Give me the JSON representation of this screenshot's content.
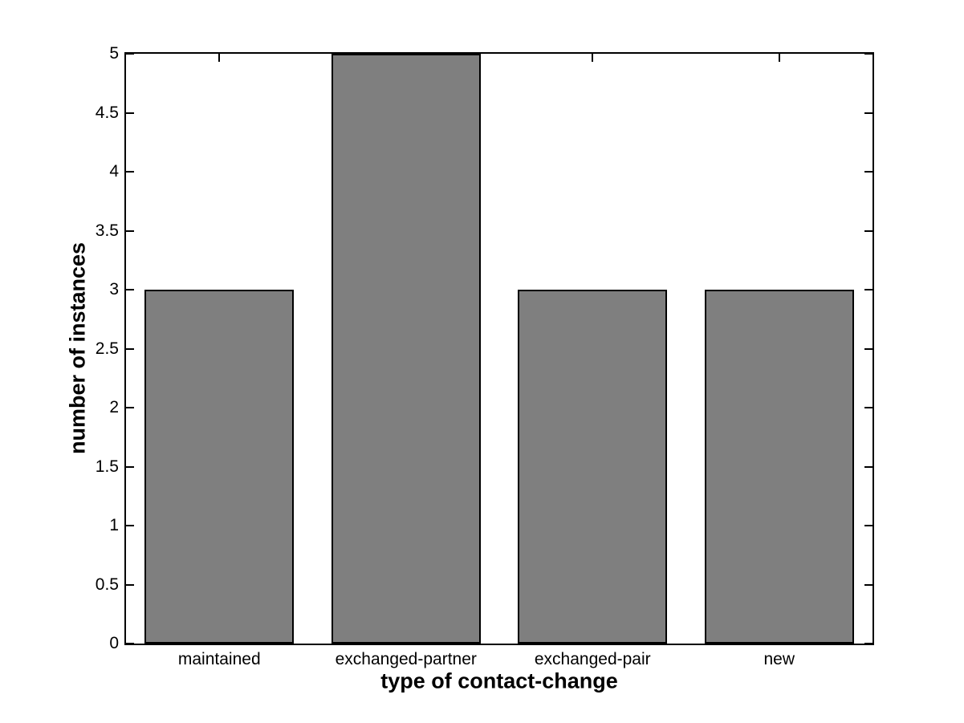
{
  "chart_data": {
    "type": "bar",
    "categories": [
      "maintained",
      "exchanged-partner",
      "exchanged-pair",
      "new"
    ],
    "values": [
      3,
      5,
      3,
      3
    ],
    "title": "",
    "xlabel": "type of contact-change",
    "ylabel": "number of instances",
    "ylim": [
      0,
      5
    ],
    "ytick_step": 0.5,
    "ytick_labels": [
      "0",
      "0.5",
      "1",
      "1.5",
      "2",
      "2.5",
      "3",
      "3.5",
      "4",
      "4.5",
      "5"
    ],
    "bar_color": "#7f7f7f",
    "bar_edge_color": "#000000",
    "axis_color": "#000000",
    "background_color": "#ffffff",
    "grid": false,
    "legend": null
  }
}
